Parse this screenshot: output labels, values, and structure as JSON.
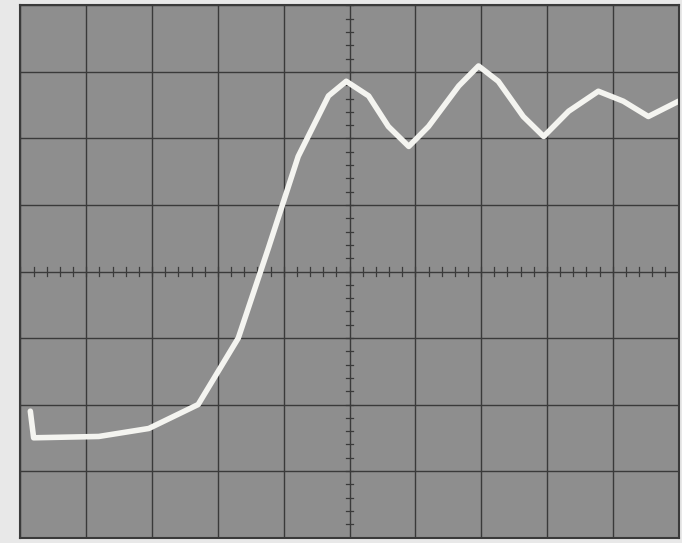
{
  "chart_data": {
    "type": "line",
    "x": [
      0.15,
      0.2,
      1.19,
      1.95,
      2.7,
      3.31,
      3.77,
      4.22,
      4.68,
      4.95,
      5.29,
      5.59,
      5.9,
      6.2,
      6.66,
      6.96,
      7.26,
      7.64,
      7.95,
      8.33,
      8.78,
      9.16,
      9.54,
      10.0
    ],
    "values": [
      1.9,
      1.5,
      1.52,
      1.64,
      2.0,
      3.0,
      4.36,
      5.73,
      6.64,
      6.86,
      6.64,
      6.18,
      5.88,
      6.18,
      6.79,
      7.09,
      6.86,
      6.33,
      6.03,
      6.41,
      6.71,
      6.56,
      6.33,
      6.56
    ],
    "color": "#f4f4f0",
    "xlim": [
      0,
      10
    ],
    "ylim": [
      0,
      8
    ],
    "xticks": [
      0,
      1,
      2,
      3,
      4,
      5,
      6,
      7,
      8,
      9,
      10
    ],
    "yticks": [
      0,
      1,
      2,
      3,
      4,
      5,
      6,
      7,
      8
    ],
    "grid": true,
    "tick_labels": false
  }
}
